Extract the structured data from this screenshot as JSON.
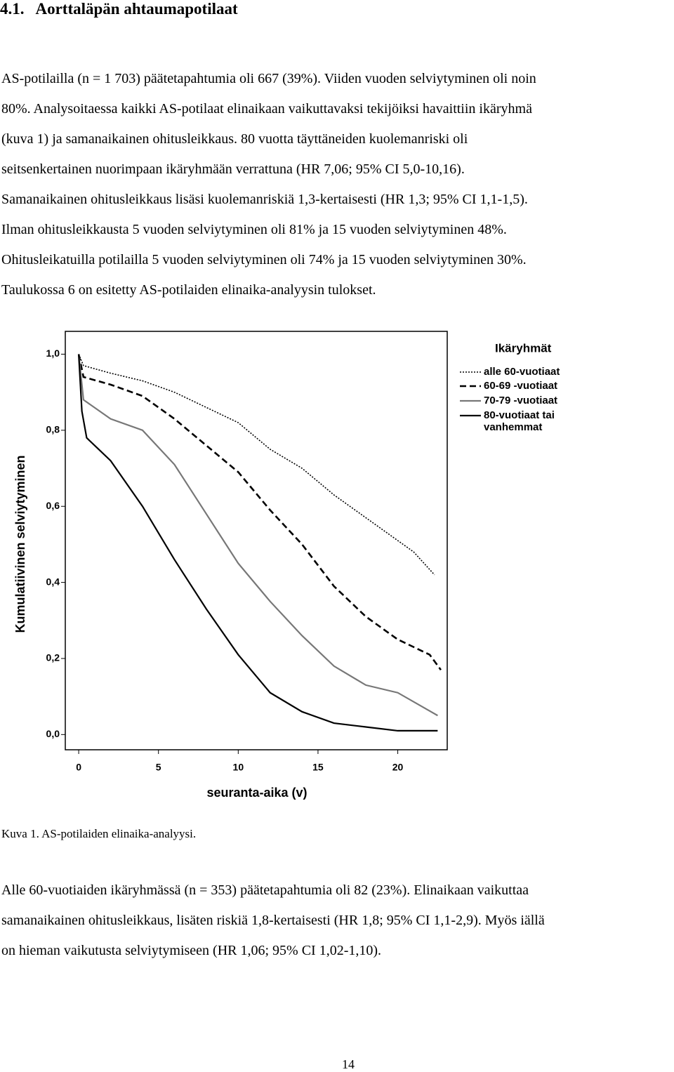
{
  "heading": "4.1.   Aorttaläpän ahtaumapotilaat",
  "paragraphs": [
    {
      "lines": [
        "AS-potilailla (n = 1 703) päätetapahtumia oli 667 (39%). Viiden vuoden selviytyminen oli noin",
        "80%. Analysoitaessa kaikki AS-potilaat elinaikaan vaikuttavaksi tekijöiksi havaittiin ikäryhmä",
        "(kuva 1) ja samanaikainen ohitusleikkaus. 80 vuotta täyttäneiden kuolemanriski oli",
        "seitsenkertainen nuorimpaan ikäryhmään verrattuna (HR 7,06; 95% CI 5,0-10,16).",
        "Samanaikainen ohitusleikkaus lisäsi kuolemanriskiä 1,3-kertaisesti (HR 1,3; 95% CI 1,1-1,5).",
        "Ilman ohitusleikkausta 5 vuoden selviytyminen oli 81% ja 15 vuoden selviytyminen 48%.",
        "Ohitusleikatuilla potilailla 5 vuoden selviytyminen oli 74% ja 15 vuoden selviytyminen 30%.",
        "Taulukossa 6 on esitetty AS-potilaiden elinaika-analyysin tulokset."
      ]
    },
    {
      "lines": [
        "Alle 60-vuotiaiden ikäryhmässä (n = 353) päätetapahtumia oli 82 (23%). Elinaikaan vaikuttaa",
        "samanaikainen ohitusleikkaus, lisäten riskiä 1,8-kertaisesti (HR 1,8; 95% CI 1,1-2,9). Myös iällä",
        "on hieman vaikutusta selviytymiseen (HR 1,06; 95% CI 1,02-1,10)."
      ]
    }
  ],
  "chart_data": {
    "type": "line",
    "y_label": "Kumulatiivinen selviytyminen",
    "x_label": "seuranta-aika (v)",
    "legend_title": "Ikäryhmät",
    "xlim": [
      -0.84,
      23.1
    ],
    "ylim": [
      -0.04,
      1.06
    ],
    "xticks": [
      0,
      5,
      10,
      15,
      20
    ],
    "yticks": [
      {
        "value": 0,
        "label": "0,0"
      },
      {
        "value": 0.2,
        "label": "0,2"
      },
      {
        "value": 0.4,
        "label": "0,4"
      },
      {
        "value": 0.6,
        "label": "0,6"
      },
      {
        "value": 0.8,
        "label": "0,8"
      },
      {
        "value": 1,
        "label": "1,0"
      }
    ],
    "series": [
      {
        "name": "alle 60-vuotiaat",
        "color": "#000000",
        "dash": "dotted",
        "x": [
          0,
          0.3,
          2,
          4,
          6,
          8,
          10,
          12,
          14,
          16,
          18,
          20,
          21,
          22.3
        ],
        "values": [
          1,
          0.97,
          0.95,
          0.93,
          0.9,
          0.86,
          0.82,
          0.75,
          0.7,
          0.63,
          0.57,
          0.51,
          0.48,
          0.42
        ]
      },
      {
        "name": "60-69 -vuotiaat",
        "color": "#000000",
        "dash": "dashed",
        "x": [
          0,
          0.3,
          2,
          4,
          6,
          8,
          10,
          12,
          14,
          16,
          18,
          20,
          22,
          22.7
        ],
        "values": [
          1,
          0.94,
          0.92,
          0.89,
          0.83,
          0.76,
          0.69,
          0.59,
          0.5,
          0.39,
          0.31,
          0.25,
          0.21,
          0.17
        ]
      },
      {
        "name": "70-79 -vuotiaat",
        "color": "#777777",
        "dash": "solid",
        "x": [
          0,
          0.3,
          2,
          4,
          6,
          8,
          10,
          12,
          14,
          16,
          18,
          20,
          22.5
        ],
        "values": [
          1,
          0.88,
          0.83,
          0.8,
          0.71,
          0.58,
          0.45,
          0.35,
          0.26,
          0.18,
          0.13,
          0.11,
          0.05
        ]
      },
      {
        "name": "80-vuotiaat tai vanhemmat",
        "color": "#000000",
        "dash": "solid",
        "x": [
          0,
          0.2,
          0.5,
          2,
          4,
          6,
          8,
          10,
          12,
          14,
          16,
          18,
          20,
          22.5
        ],
        "values": [
          1,
          0.85,
          0.78,
          0.72,
          0.6,
          0.46,
          0.33,
          0.21,
          0.11,
          0.06,
          0.03,
          0.02,
          0.01,
          0.01
        ]
      }
    ]
  },
  "caption": "Kuva 1. AS-potilaiden elinaika-analyysi.",
  "page_number": "14"
}
